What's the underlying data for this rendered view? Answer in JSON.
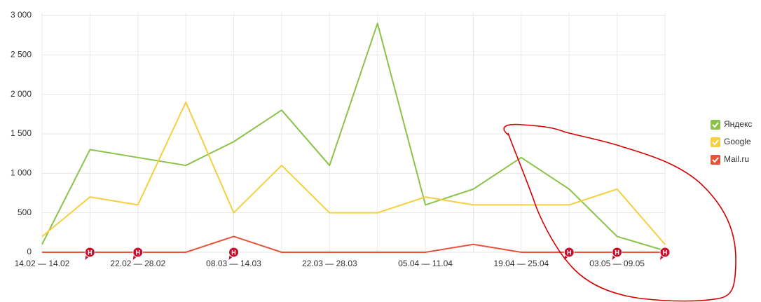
{
  "chart_data": {
    "type": "line",
    "categories": [
      "14.02 — 14.02",
      null,
      "22.02 — 28.02",
      null,
      "08.03 — 14.03",
      null,
      "22.03 — 28.03",
      null,
      "05.04 — 11.04",
      null,
      "19.04 — 25.04",
      null,
      "03.05 — 09.05",
      null
    ],
    "series": [
      {
        "name": "Яндекс",
        "color": "#8bc34a",
        "values": [
          100,
          1300,
          1200,
          1100,
          1400,
          1800,
          1100,
          2900,
          600,
          800,
          1200,
          800,
          200,
          20
        ]
      },
      {
        "name": "Google",
        "color": "#f5cf3f",
        "values": [
          200,
          700,
          600,
          1900,
          500,
          1100,
          500,
          500,
          700,
          600,
          600,
          600,
          800,
          100
        ]
      },
      {
        "name": "Mail.ru",
        "color": "#e6543a",
        "values": [
          0,
          0,
          0,
          0,
          200,
          0,
          0,
          0,
          0,
          100,
          0,
          0,
          0,
          0
        ]
      }
    ],
    "ylim": [
      0,
      3000
    ],
    "yticks": [
      0,
      500,
      {
        "value": 1000,
        "label": "1 000"
      },
      {
        "value": 1500,
        "label": "1 500"
      },
      {
        "value": 2000,
        "label": "2 000"
      },
      {
        "value": 2500,
        "label": "2 500"
      },
      {
        "value": 3000,
        "label": "3 000"
      }
    ],
    "grid": true,
    "legend": "right",
    "marker_label": "Н"
  }
}
